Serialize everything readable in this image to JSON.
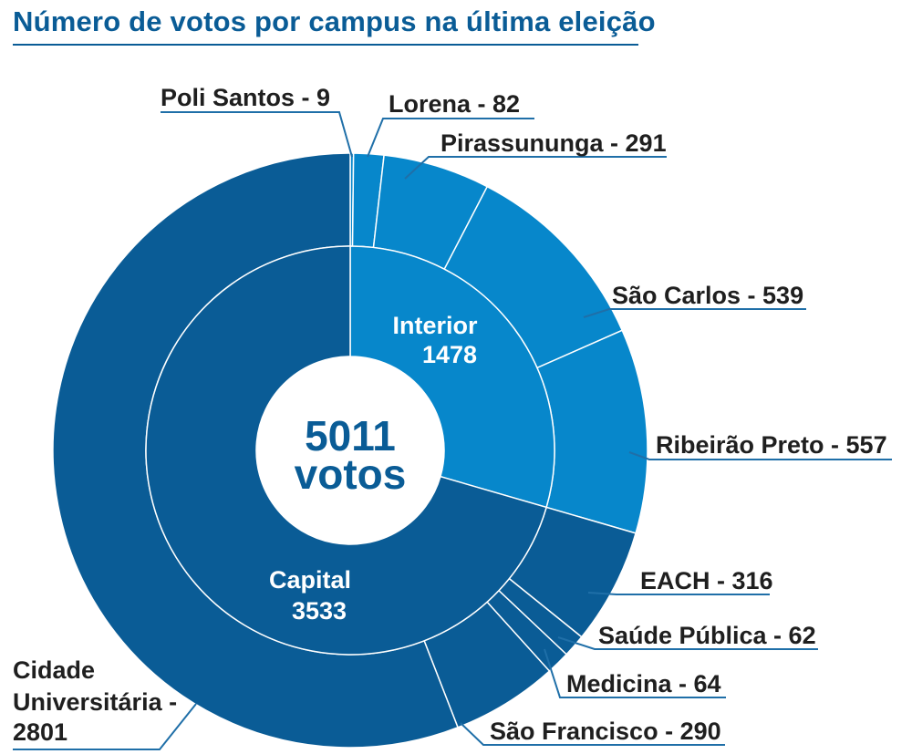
{
  "chart_data": {
    "type": "sunburst",
    "title": "Número de votos por campus na última eleição",
    "center": {
      "value": "5011",
      "unit": "votos"
    },
    "groups": [
      {
        "name": "Interior",
        "value": 1478,
        "color": "#0787cb"
      },
      {
        "name": "Capital",
        "value": 3533,
        "color": "#0a5c96"
      }
    ],
    "campuses": [
      {
        "group": "Interior",
        "name": "Poli Santos",
        "value": 9,
        "label": "Poli Santos - 9"
      },
      {
        "group": "Interior",
        "name": "Lorena",
        "value": 82,
        "label": "Lorena - 82"
      },
      {
        "group": "Interior",
        "name": "Pirassununga",
        "value": 291,
        "label": "Pirassununga - 291"
      },
      {
        "group": "Interior",
        "name": "São Carlos",
        "value": 539,
        "label": "São Carlos - 539"
      },
      {
        "group": "Interior",
        "name": "Ribeirão Preto",
        "value": 557,
        "label": "Ribeirão Preto - 557"
      },
      {
        "group": "Capital",
        "name": "EACH",
        "value": 316,
        "label": "EACH - 316"
      },
      {
        "group": "Capital",
        "name": "Saúde Pública",
        "value": 62,
        "label": "Saúde Pública - 62"
      },
      {
        "group": "Capital",
        "name": "Medicina",
        "value": 64,
        "label": "Medicina - 64"
      },
      {
        "group": "Capital",
        "name": "São Francisco",
        "value": 290,
        "label": "São Francisco - 290"
      },
      {
        "group": "Capital",
        "name": "Cidade Universitária",
        "value": 2801,
        "label": "Cidade Universitária - 2801"
      }
    ]
  }
}
